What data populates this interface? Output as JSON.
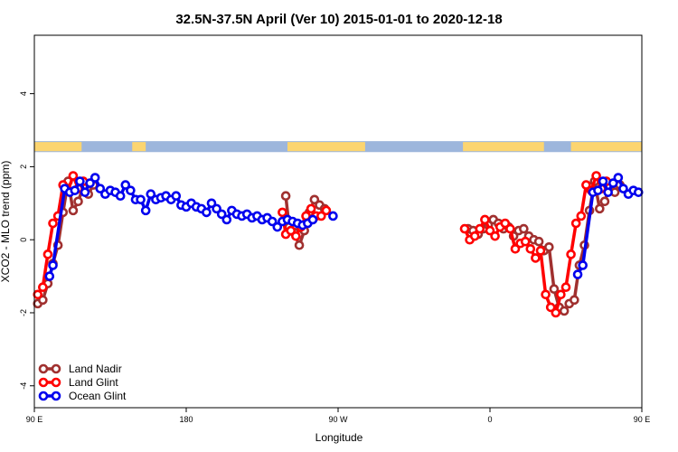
{
  "chart_data": {
    "type": "line",
    "title": "32.5N-37.5N April (Ver 10)   2015-01-01 to 2020-12-18",
    "xlabel": "Longitude",
    "ylabel": "XCO2 - MLO trend (ppm)",
    "xlim": [
      90,
      450
    ],
    "ylim": [
      -4.6,
      5.6
    ],
    "xticks": [
      {
        "value": 90,
        "label": "90 E"
      },
      {
        "value": 180,
        "label": "180"
      },
      {
        "value": 270,
        "label": "90 W"
      },
      {
        "value": 360,
        "label": "0"
      },
      {
        "value": 450,
        "label": "90 E"
      },
      {
        "value": 540,
        "label": "180"
      }
    ],
    "yticks": [
      {
        "value": -4,
        "label": "-4"
      },
      {
        "value": -2,
        "label": "-2"
      },
      {
        "value": 0,
        "label": "0"
      },
      {
        "value": 2,
        "label": "2"
      },
      {
        "value": 4,
        "label": "4"
      }
    ],
    "legend_position": "bottom-left",
    "colors": {
      "land_nadir": "#a0302f",
      "land_glint": "#ff0000",
      "ocean_glint": "#0000ee",
      "land_band": "#fcd570",
      "ocean_band": "#9db6dc"
    },
    "series": [
      {
        "name": "Land Nadir",
        "segments": [
          [
            [
              92,
              -1.75
            ],
            [
              95,
              -1.65
            ],
            [
              98,
              -1.2
            ],
            [
              101,
              -0.65
            ],
            [
              104,
              -0.15
            ],
            [
              107,
              0.75
            ],
            [
              110,
              1.6
            ],
            [
              113,
              0.8
            ],
            [
              116,
              1.05
            ],
            [
              119,
              1.45
            ],
            [
              122,
              1.25
            ],
            [
              125,
              1.5
            ]
          ],
          [
            [
              239,
              1.2
            ],
            [
              241,
              0.35
            ],
            [
              244,
              0.2
            ],
            [
              247,
              -0.15
            ],
            [
              250,
              0.25
            ],
            [
              253,
              0.75
            ],
            [
              256,
              1.1
            ],
            [
              259,
              0.95
            ],
            [
              262,
              0.85
            ]
          ],
          [
            [
              347,
              0.3
            ],
            [
              350,
              0.25
            ],
            [
              353,
              0.15
            ],
            [
              356,
              0.3
            ],
            [
              359,
              0.4
            ],
            [
              362,
              0.55
            ],
            [
              365,
              0.45
            ],
            [
              368,
              0.3
            ],
            [
              371,
              0.35
            ],
            [
              374,
              0.1
            ],
            [
              377,
              0.25
            ],
            [
              380,
              0.3
            ],
            [
              383,
              0.1
            ],
            [
              386,
              0.0
            ],
            [
              389,
              -0.05
            ],
            [
              392,
              -0.3
            ],
            [
              395,
              -0.2
            ],
            [
              398,
              -1.35
            ],
            [
              401,
              -1.85
            ],
            [
              404,
              -1.95
            ],
            [
              407,
              -1.75
            ],
            [
              410,
              -1.65
            ],
            [
              413,
              -0.7
            ],
            [
              416,
              -0.15
            ],
            [
              419,
              0.8
            ],
            [
              422,
              1.6
            ],
            [
              425,
              0.85
            ],
            [
              428,
              1.05
            ],
            [
              431,
              1.45
            ],
            [
              434,
              1.3
            ],
            [
              437,
              1.5
            ]
          ]
        ]
      },
      {
        "name": "Land Glint",
        "segments": [
          [
            [
              92,
              -1.5
            ],
            [
              95,
              -1.3
            ],
            [
              98,
              -0.4
            ],
            [
              101,
              0.45
            ],
            [
              104,
              0.65
            ],
            [
              107,
              1.5
            ],
            [
              110,
              1.35
            ],
            [
              113,
              1.75
            ],
            [
              116,
              1.4
            ],
            [
              119,
              1.6
            ]
          ],
          [
            [
              237,
              0.75
            ],
            [
              239,
              0.15
            ],
            [
              242,
              0.25
            ],
            [
              245,
              0.1
            ],
            [
              248,
              0.35
            ],
            [
              251,
              0.65
            ],
            [
              254,
              0.85
            ],
            [
              257,
              0.65
            ],
            [
              260,
              0.65
            ],
            [
              263,
              0.8
            ]
          ],
          [
            [
              345,
              0.3
            ],
            [
              348,
              0.0
            ],
            [
              351,
              0.1
            ],
            [
              354,
              0.3
            ],
            [
              357,
              0.55
            ],
            [
              360,
              0.25
            ],
            [
              363,
              0.1
            ],
            [
              366,
              0.35
            ],
            [
              369,
              0.45
            ],
            [
              372,
              0.3
            ],
            [
              375,
              -0.25
            ],
            [
              378,
              -0.1
            ],
            [
              381,
              -0.05
            ],
            [
              384,
              -0.25
            ],
            [
              387,
              -0.5
            ],
            [
              390,
              -0.3
            ],
            [
              393,
              -1.5
            ],
            [
              396,
              -1.85
            ],
            [
              399,
              -2.0
            ],
            [
              402,
              -1.5
            ],
            [
              405,
              -1.3
            ],
            [
              408,
              -0.4
            ],
            [
              411,
              0.45
            ],
            [
              414,
              0.65
            ],
            [
              417,
              1.5
            ],
            [
              420,
              1.35
            ],
            [
              423,
              1.75
            ],
            [
              426,
              1.4
            ],
            [
              429,
              1.6
            ]
          ]
        ]
      },
      {
        "name": "Ocean Glint",
        "segments": [
          [
            [
              99,
              -1.0
            ],
            [
              101,
              -0.7
            ],
            [
              108,
              1.4
            ],
            [
              111,
              1.3
            ],
            [
              114,
              1.35
            ],
            [
              117,
              1.6
            ],
            [
              120,
              1.3
            ],
            [
              123,
              1.55
            ],
            [
              126,
              1.7
            ],
            [
              129,
              1.4
            ],
            [
              132,
              1.25
            ],
            [
              135,
              1.35
            ],
            [
              138,
              1.3
            ],
            [
              141,
              1.2
            ],
            [
              144,
              1.5
            ],
            [
              147,
              1.35
            ],
            [
              150,
              1.1
            ],
            [
              153,
              1.1
            ],
            [
              156,
              0.8
            ],
            [
              159,
              1.25
            ],
            [
              162,
              1.1
            ],
            [
              165,
              1.15
            ],
            [
              168,
              1.2
            ],
            [
              171,
              1.1
            ],
            [
              174,
              1.2
            ],
            [
              177,
              0.95
            ],
            [
              180,
              0.9
            ],
            [
              183,
              1.0
            ],
            [
              186,
              0.9
            ],
            [
              189,
              0.85
            ],
            [
              192,
              0.75
            ],
            [
              195,
              1.0
            ],
            [
              198,
              0.85
            ],
            [
              201,
              0.7
            ],
            [
              204,
              0.55
            ],
            [
              207,
              0.8
            ],
            [
              210,
              0.7
            ],
            [
              213,
              0.65
            ],
            [
              216,
              0.7
            ],
            [
              219,
              0.6
            ],
            [
              222,
              0.65
            ],
            [
              225,
              0.55
            ],
            [
              228,
              0.6
            ],
            [
              231,
              0.5
            ],
            [
              234,
              0.35
            ],
            [
              237,
              0.5
            ],
            [
              240,
              0.55
            ],
            [
              243,
              0.5
            ],
            [
              246,
              0.45
            ],
            [
              249,
              0.4
            ],
            [
              252,
              0.45
            ],
            [
              255,
              0.55
            ]
          ],
          [
            [
              412,
              -0.95
            ],
            [
              415,
              -0.7
            ],
            [
              421,
              1.3
            ],
            [
              424,
              1.35
            ],
            [
              427,
              1.6
            ],
            [
              430,
              1.3
            ],
            [
              433,
              1.55
            ],
            [
              436,
              1.7
            ],
            [
              439,
              1.4
            ],
            [
              442,
              1.25
            ],
            [
              445,
              1.35
            ],
            [
              448,
              1.3
            ],
            [
              451,
              1.2
            ],
            [
              454,
              1.5
            ],
            [
              457,
              1.35
            ]
          ]
        ],
        "isolated_points": [
          [
            267,
            0.65
          ]
        ]
      }
    ]
  }
}
